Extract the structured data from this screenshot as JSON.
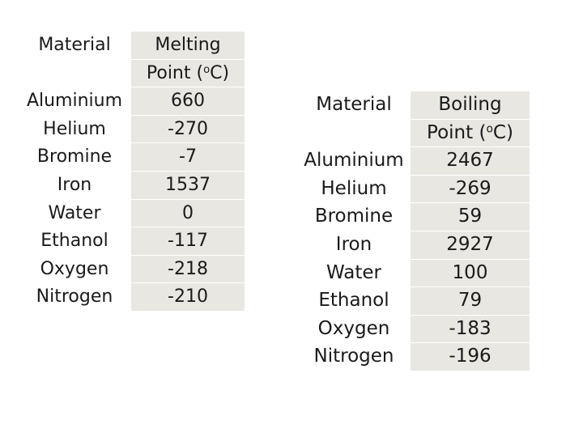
{
  "melting_table": {
    "header": {
      "material": "Material",
      "value_line1": "Melting",
      "value_line2_prefix": "Point (",
      "degree_mark": "o",
      "value_line2_suffix": "C)"
    },
    "rows": [
      {
        "material": "Aluminium",
        "value": "660"
      },
      {
        "material": "Helium",
        "value": "-270"
      },
      {
        "material": "Bromine",
        "value": "-7"
      },
      {
        "material": "Iron",
        "value": "1537"
      },
      {
        "material": "Water",
        "value": "0"
      },
      {
        "material": "Ethanol",
        "value": "-117"
      },
      {
        "material": "Oxygen",
        "value": "-218"
      },
      {
        "material": "Nitrogen",
        "value": "-210"
      }
    ]
  },
  "boiling_table": {
    "header": {
      "material": "Material",
      "value_line1": "Boiling",
      "value_line2_prefix": "Point (",
      "degree_mark": "o",
      "value_line2_suffix": "C)"
    },
    "rows": [
      {
        "material": "Aluminium",
        "value": "2467"
      },
      {
        "material": "Helium",
        "value": "-269"
      },
      {
        "material": "Bromine",
        "value": "59"
      },
      {
        "material": "Iron",
        "value": "2927"
      },
      {
        "material": "Water",
        "value": "100"
      },
      {
        "material": "Ethanol",
        "value": "79"
      },
      {
        "material": "Oxygen",
        "value": "-183"
      },
      {
        "material": "Nitrogen",
        "value": "-196"
      }
    ]
  },
  "colors": {
    "value_cell_background": "#e9e7e2",
    "text": "#1a1a1a"
  }
}
